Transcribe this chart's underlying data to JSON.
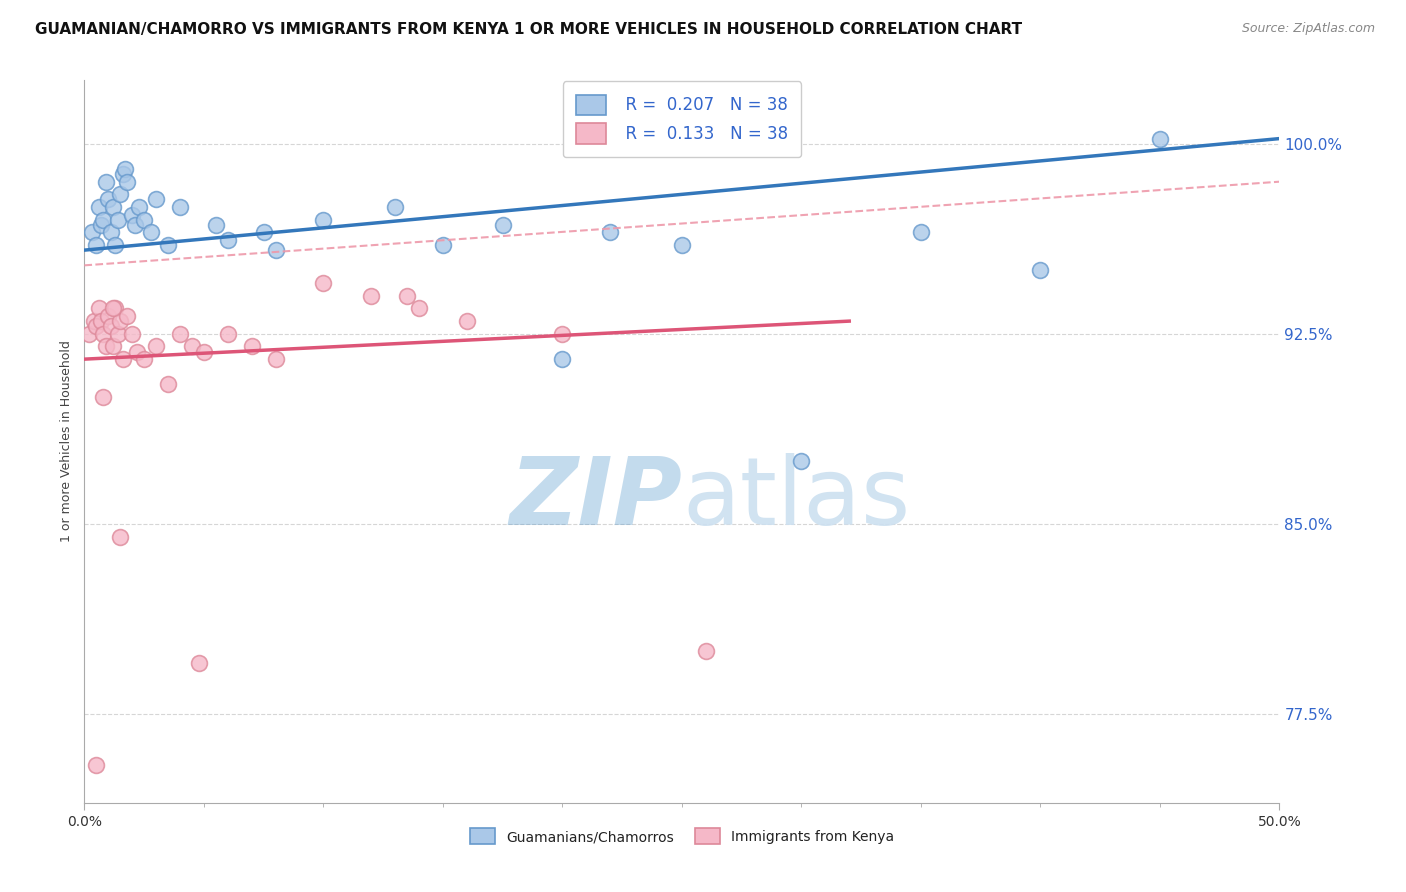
{
  "title": "GUAMANIAN/CHAMORRO VS IMMIGRANTS FROM KENYA 1 OR MORE VEHICLES IN HOUSEHOLD CORRELATION CHART",
  "source": "Source: ZipAtlas.com",
  "ylabel": "1 or more Vehicles in Household",
  "xmin": 0.0,
  "xmax": 50.0,
  "ymin": 74.0,
  "ymax": 102.5,
  "yticks": [
    77.5,
    85.0,
    92.5,
    100.0
  ],
  "ytick_labels": [
    "77.5%",
    "85.0%",
    "92.5%",
    "100.0%"
  ],
  "blue_R": 0.207,
  "blue_N": 38,
  "pink_R": 0.133,
  "pink_N": 38,
  "blue_line_x0": 0.0,
  "blue_line_y0": 95.8,
  "blue_line_x1": 50.0,
  "blue_line_y1": 100.2,
  "pink_line_x0": 0.0,
  "pink_line_y0": 91.5,
  "pink_line_x1": 32.0,
  "pink_line_y1": 93.0,
  "pink_dash_x0": 0.0,
  "pink_dash_y0": 95.2,
  "pink_dash_x1": 50.0,
  "pink_dash_y1": 98.5,
  "blue_scatter_x": [
    0.3,
    0.5,
    0.6,
    0.7,
    0.8,
    0.9,
    1.0,
    1.1,
    1.2,
    1.3,
    1.4,
    1.5,
    1.6,
    1.7,
    1.8,
    2.0,
    2.1,
    2.3,
    2.5,
    2.8,
    3.0,
    3.5,
    4.0,
    5.5,
    6.0,
    7.5,
    8.0,
    10.0,
    13.0,
    15.0,
    17.5,
    20.0,
    22.0,
    25.0,
    30.0,
    35.0,
    40.0,
    45.0
  ],
  "blue_scatter_y": [
    96.5,
    96.0,
    97.5,
    96.8,
    97.0,
    98.5,
    97.8,
    96.5,
    97.5,
    96.0,
    97.0,
    98.0,
    98.8,
    99.0,
    98.5,
    97.2,
    96.8,
    97.5,
    97.0,
    96.5,
    97.8,
    96.0,
    97.5,
    96.8,
    96.2,
    96.5,
    95.8,
    97.0,
    97.5,
    96.0,
    96.8,
    91.5,
    96.5,
    96.0,
    87.5,
    96.5,
    95.0,
    100.2
  ],
  "pink_scatter_x": [
    0.2,
    0.4,
    0.5,
    0.6,
    0.7,
    0.8,
    0.9,
    1.0,
    1.1,
    1.2,
    1.3,
    1.4,
    1.5,
    1.6,
    1.8,
    2.0,
    2.2,
    2.5,
    3.0,
    3.5,
    4.0,
    4.5,
    5.0,
    6.0,
    7.0,
    8.0,
    10.0,
    12.0,
    14.0,
    16.0,
    1.5,
    4.8,
    26.0,
    0.5,
    0.8,
    1.2,
    13.5,
    20.0
  ],
  "pink_scatter_y": [
    92.5,
    93.0,
    92.8,
    93.5,
    93.0,
    92.5,
    92.0,
    93.2,
    92.8,
    92.0,
    93.5,
    92.5,
    93.0,
    91.5,
    93.2,
    92.5,
    91.8,
    91.5,
    92.0,
    90.5,
    92.5,
    92.0,
    91.8,
    92.5,
    92.0,
    91.5,
    94.5,
    94.0,
    93.5,
    93.0,
    84.5,
    79.5,
    80.0,
    75.5,
    90.0,
    93.5,
    94.0,
    92.5
  ],
  "blue_scatter_color": "#aac8e8",
  "blue_edge_color": "#6699cc",
  "pink_scatter_color": "#f5b8c8",
  "pink_edge_color": "#dd8899",
  "blue_line_color": "#3377bb",
  "pink_line_color": "#dd5577",
  "pink_dashed_color": "#ee99aa",
  "watermark_color": "#cce0f0",
  "blue_legend_label": "Guamanians/Chamorros",
  "pink_legend_label": "Immigrants from Kenya",
  "title_fontsize": 11,
  "source_fontsize": 9,
  "axis_label_fontsize": 9,
  "legend_fontsize": 12,
  "scatter_size": 130,
  "background_color": "#ffffff",
  "tick_color": "#3366cc",
  "grid_color": "#cccccc"
}
